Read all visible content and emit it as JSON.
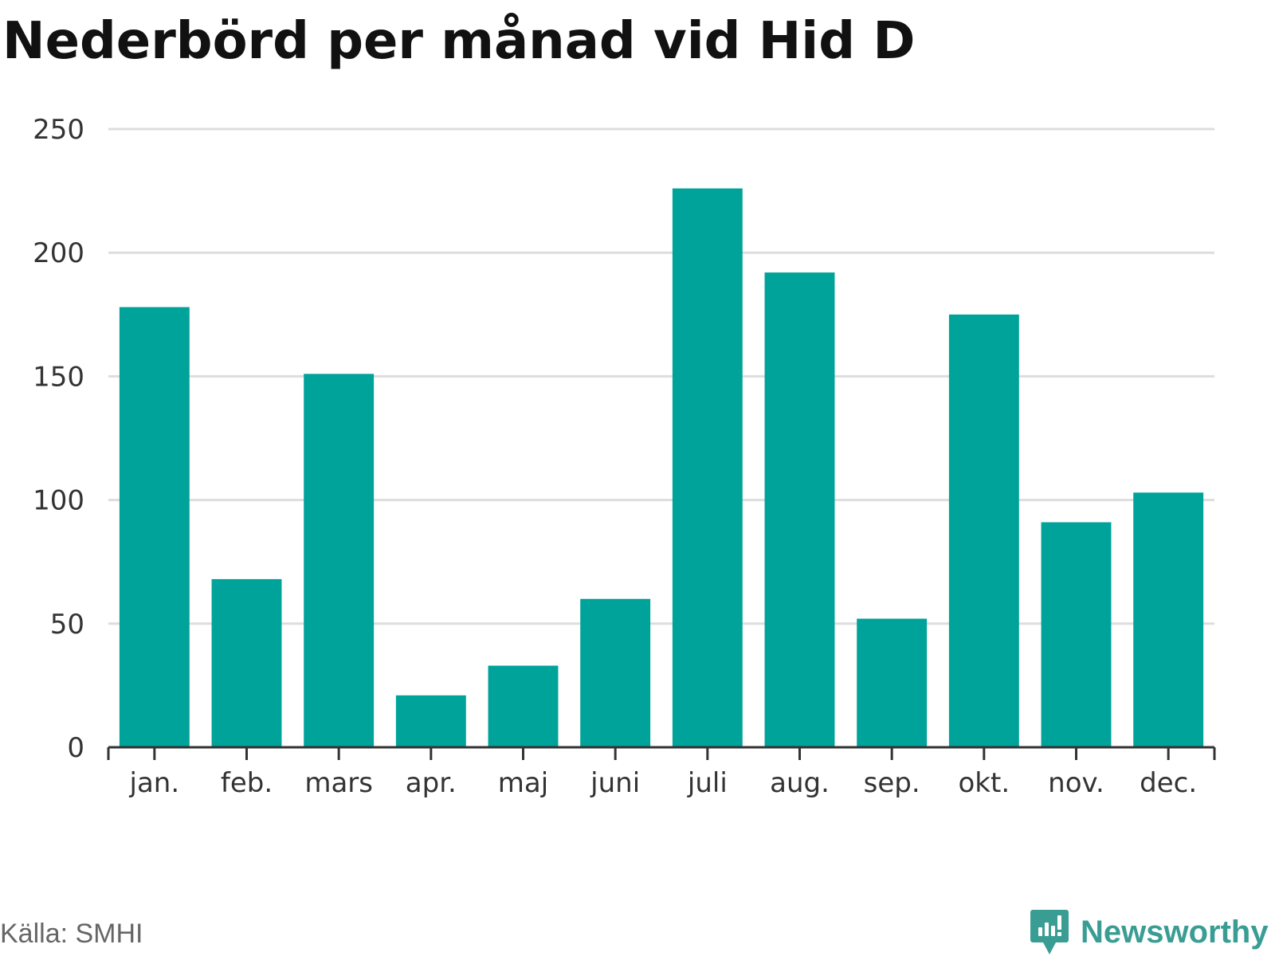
{
  "chart_data": {
    "type": "bar",
    "title": "Nederbörd per månad vid Hid D",
    "categories": [
      "jan.",
      "feb.",
      "mars",
      "apr.",
      "maj",
      "juni",
      "juli",
      "aug.",
      "sep.",
      "okt.",
      "nov.",
      "dec."
    ],
    "values": [
      178,
      68,
      151,
      21,
      33,
      60,
      226,
      192,
      52,
      175,
      91,
      103
    ],
    "ylim": [
      0,
      250
    ],
    "yticks": [
      0,
      50,
      100,
      150,
      200,
      250
    ],
    "xlabel": "",
    "ylabel": "",
    "grid": true,
    "legend": "none"
  },
  "colors": {
    "bar": "#00a39a",
    "grid": "#dddddd",
    "axis": "#333333",
    "title": "#111111",
    "source": "#666666",
    "brand": "#3a9d94"
  },
  "footer": {
    "source": "Källa: SMHI",
    "brand": "Newsworthy",
    "brand_icon": "newsworthy-logo-icon"
  }
}
